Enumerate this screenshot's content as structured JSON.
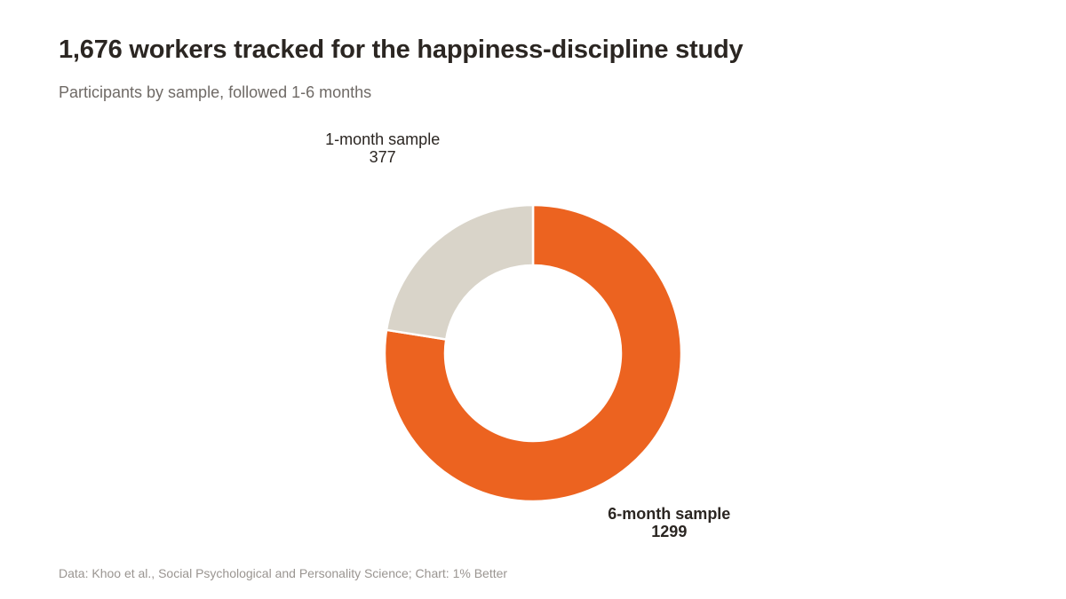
{
  "header": {
    "title": "1,676 workers tracked for the happiness-discipline study",
    "subtitle": "Participants by sample, followed 1-6 months"
  },
  "footer": {
    "source": "Data: Khoo et al., Social Psychological and Personality Science; Chart: 1% Better"
  },
  "chart_data": {
    "type": "pie",
    "variant": "donut",
    "slices": [
      {
        "label": "6-month sample",
        "value": 1299,
        "color": "#ec6320",
        "emphasis": true
      },
      {
        "label": "1-month sample",
        "value": 377,
        "color": "#d9d4c9",
        "emphasis": false
      }
    ],
    "legend": "none",
    "labels": "outside"
  }
}
